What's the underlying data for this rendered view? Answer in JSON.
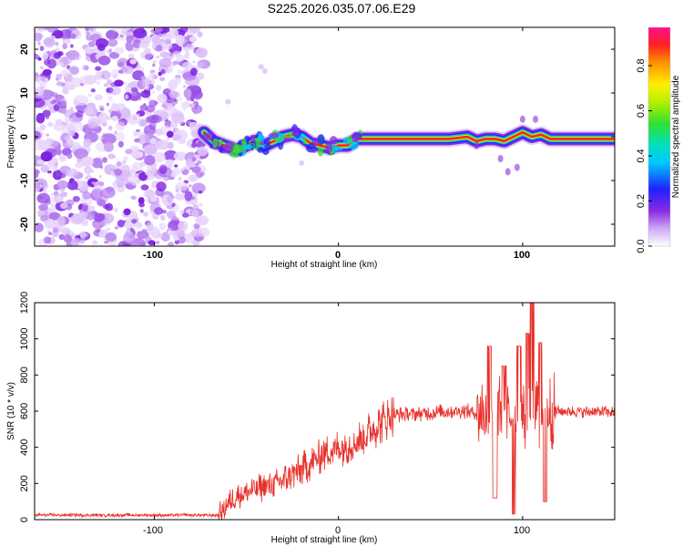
{
  "title": "S225.2026.035.07.06.E29",
  "chart_data": [
    {
      "type": "heatmap",
      "xlabel": "Height of straight line (km)",
      "ylabel": "Frequency (Hz)",
      "xlim": [
        -165,
        150
      ],
      "ylim": [
        -25,
        25
      ],
      "x_ticks": [
        "-100",
        "0",
        "100"
      ],
      "y_ticks": [
        "-20",
        "-10",
        "0",
        "10",
        "20"
      ],
      "noise_region_x": [
        -165,
        -73
      ],
      "ridge": {
        "x": [
          -73,
          -68,
          -62,
          -55,
          -50,
          -45,
          -40,
          -35,
          -30,
          -25,
          -20,
          -15,
          -10,
          -5,
          0,
          5,
          10,
          30,
          60,
          70,
          75,
          80,
          85,
          90,
          95,
          100,
          105,
          110,
          115,
          120,
          150
        ],
        "freq": [
          1,
          -1,
          -2,
          -3,
          -2,
          -1,
          -2,
          -1,
          0,
          0.5,
          0,
          -1.5,
          -2,
          -2.5,
          -2,
          -2,
          -0.5,
          -0.5,
          -0.5,
          0,
          -1,
          -0.5,
          -0.5,
          -1,
          0,
          1,
          0,
          0.5,
          -0.5,
          -0.5,
          -0.5
        ]
      },
      "colorbar": {
        "label": "Normalized spectral amplitude",
        "ticks": [
          "0.0",
          "0.2",
          "0.4",
          "0.6",
          "0.8"
        ],
        "range": [
          0,
          0.97
        ]
      }
    },
    {
      "type": "line",
      "xlabel": "Height of straight line (km)",
      "ylabel": "SNR (10 * v/v)",
      "xlim": [
        -165,
        150
      ],
      "ylim": [
        0,
        1200
      ],
      "x_ticks": [
        "-100",
        "0",
        "100"
      ],
      "y_ticks": [
        "0",
        "200",
        "400",
        "600",
        "800",
        "1000",
        "1200"
      ],
      "color": "#e8302a",
      "envelope": {
        "x": [
          -165,
          -65,
          -60,
          -55,
          -50,
          -45,
          -40,
          -35,
          -30,
          -25,
          -20,
          -15,
          -10,
          -5,
          0,
          5,
          10,
          15,
          20,
          25,
          30,
          40,
          50,
          60,
          70,
          75,
          80,
          85,
          90,
          95,
          100,
          105,
          110,
          115,
          120,
          150
        ],
        "snr": [
          25,
          25,
          90,
          130,
          150,
          170,
          180,
          200,
          220,
          250,
          280,
          310,
          350,
          380,
          400,
          410,
          430,
          470,
          510,
          550,
          580,
          585,
          590,
          600,
          600,
          590,
          600,
          590,
          570,
          580,
          560,
          620,
          600,
          600,
          600,
          595
        ]
      },
      "spikes": [
        {
          "x": 82,
          "snr": 960
        },
        {
          "x": 90,
          "snr": 850
        },
        {
          "x": 98,
          "snr": 960
        },
        {
          "x": 103,
          "snr": 1030
        },
        {
          "x": 105,
          "snr": 1200
        },
        {
          "x": 110,
          "snr": 980
        },
        {
          "x": 95,
          "snr": 30
        },
        {
          "x": 105,
          "snr": 40
        },
        {
          "x": 112,
          "snr": 100
        },
        {
          "x": 85,
          "snr": 120
        }
      ]
    }
  ]
}
